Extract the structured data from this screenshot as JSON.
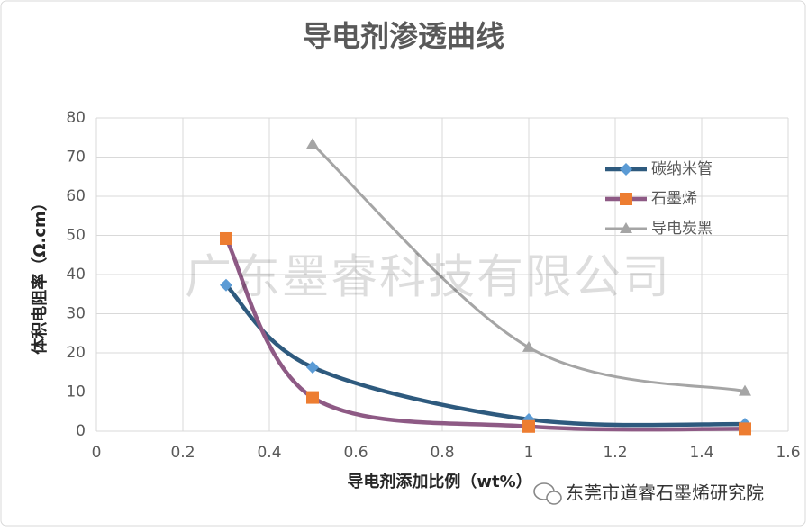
{
  "chart_data": {
    "type": "line",
    "title": "导电剂渗透曲线",
    "x_label": "导电剂添加比例（wt%）",
    "y_label": "体积电阻率（Ω.cm）",
    "x": [
      0.3,
      0.5,
      1.0,
      1.5
    ],
    "series": [
      {
        "name": "碳纳米管",
        "color": "#2e5a7e",
        "marker_color": "#5b9bd5",
        "marker": "diamond",
        "values": [
          37.3,
          16.3,
          3,
          1.8
        ]
      },
      {
        "name": "石墨烯",
        "color": "#8e5a85",
        "marker_color": "#ed7d31",
        "marker": "square",
        "values": [
          49.2,
          8.6,
          1.2,
          0.6
        ]
      },
      {
        "name": "导电炭黑",
        "color": "#a5a5a5",
        "marker_color": "#a5a5a5",
        "marker": "triangle",
        "values": [
          null,
          73.3,
          21.4,
          10.2
        ]
      }
    ],
    "xlim": [
      0,
      1.6
    ],
    "xticks": [
      0,
      0.2,
      0.4,
      0.6,
      0.8,
      1,
      1.2,
      1.4,
      1.6
    ],
    "ylim": [
      0,
      80
    ],
    "yticks": [
      0,
      10,
      20,
      30,
      40,
      50,
      60,
      70,
      80
    ],
    "grid": true,
    "smooth": true,
    "legend": "upper-right"
  },
  "watermark": "广东墨睿科技有限公司",
  "footer": "东莞市道睿石墨烯研究院"
}
